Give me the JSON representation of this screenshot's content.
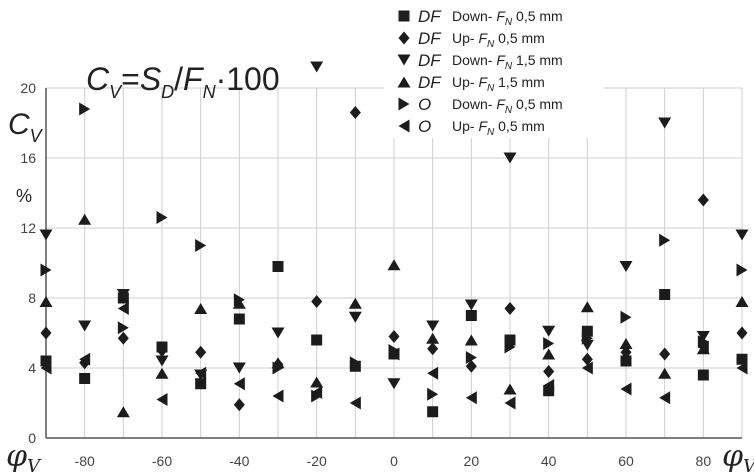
{
  "chart_data": {
    "type": "scatter",
    "formula": "C_V=S_D/F_N·100",
    "ylabel": "C_V",
    "yunit": "%",
    "xlabel": "φ_V",
    "xlim": [
      -90,
      90
    ],
    "ylim": [
      0,
      20
    ],
    "yticks": [
      0,
      4,
      8,
      12,
      16,
      20
    ],
    "xticks": [
      -80,
      -60,
      -40,
      -20,
      0,
      20,
      40,
      60,
      80
    ],
    "grid": true,
    "legend_position": "top-right",
    "series": [
      {
        "name": "DF Down- F_N 0,5 mm",
        "marker": "square",
        "x": [
          -90,
          -80,
          -70,
          -60,
          -50,
          -40,
          -30,
          -20,
          -10,
          0,
          10,
          20,
          30,
          40,
          50,
          60,
          70,
          80,
          90
        ],
        "y": [
          4.4,
          3.4,
          8.0,
          5.2,
          3.1,
          6.8,
          9.8,
          5.6,
          4.1,
          4.8,
          1.5,
          7.0,
          5.6,
          2.7,
          6.1,
          4.4,
          8.2,
          3.6,
          4.5
        ]
      },
      {
        "name": "DF Up- F_N 0,5 mm",
        "marker": "diamond",
        "x": [
          -90,
          -80,
          -70,
          -60,
          -50,
          -40,
          -30,
          -20,
          -10,
          0,
          10,
          20,
          30,
          40,
          50,
          60,
          70,
          80,
          90
        ],
        "y": [
          6.0,
          4.3,
          5.7,
          5.0,
          4.9,
          1.9,
          4.2,
          7.8,
          18.6,
          5.8,
          5.1,
          4.1,
          7.4,
          3.8,
          4.5,
          4.9,
          4.8,
          13.6,
          6.0
        ]
      },
      {
        "name": "DF Down- F_N 1,5 mm",
        "marker": "triangle-down",
        "x": [
          -90,
          -80,
          -70,
          -60,
          -50,
          -40,
          -30,
          -20,
          -10,
          0,
          10,
          20,
          30,
          40,
          50,
          60,
          70,
          80,
          90
        ],
        "y": [
          11.6,
          6.4,
          8.2,
          4.4,
          3.6,
          4.0,
          6.0,
          21.2,
          6.9,
          3.1,
          6.4,
          7.6,
          16.0,
          6.1,
          5.3,
          9.8,
          18.0,
          5.8,
          11.6
        ]
      },
      {
        "name": "DF Up- F_N 1,5 mm",
        "marker": "triangle-up",
        "x": [
          -90,
          -80,
          -70,
          -60,
          -50,
          -40,
          -30,
          -20,
          -10,
          0,
          10,
          20,
          30,
          40,
          50,
          60,
          70,
          80,
          90
        ],
        "y": [
          7.8,
          12.5,
          1.5,
          3.7,
          7.4,
          7.7,
          4.3,
          3.2,
          7.7,
          9.9,
          5.7,
          5.6,
          2.8,
          4.8,
          7.5,
          5.4,
          3.7,
          5.1,
          7.8
        ]
      },
      {
        "name": "O Down- F_N 0,5 mm",
        "marker": "triangle-right",
        "x": [
          -90,
          -80,
          -70,
          -60,
          -50,
          -40,
          -30,
          -20,
          -10,
          0,
          10,
          20,
          30,
          40,
          50,
          60,
          70,
          80,
          90
        ],
        "y": [
          9.6,
          18.8,
          6.3,
          12.6,
          11.0,
          7.9,
          4.0,
          2.4,
          4.3,
          5.0,
          2.5,
          4.6,
          5.2,
          5.4,
          5.7,
          6.9,
          11.3,
          5.5,
          9.6
        ]
      },
      {
        "name": "O Up- F_N 0,5 mm",
        "marker": "triangle-left",
        "x": [
          -90,
          -80,
          -70,
          -60,
          -50,
          -40,
          -30,
          -20,
          -10,
          0,
          10,
          20,
          30,
          40,
          50,
          60,
          70,
          80,
          90
        ],
        "y": [
          4.0,
          4.5,
          7.4,
          2.2,
          3.7,
          3.1,
          2.4,
          2.6,
          2.0,
          4.8,
          3.7,
          2.3,
          2.0,
          3.0,
          4.0,
          2.8,
          2.3,
          5.2,
          4.0
        ]
      }
    ]
  },
  "legend": {
    "items": [
      {
        "tag": "DF",
        "label": "Down- F_N 0,5 mm"
      },
      {
        "tag": "DF",
        "label": "Up- F_N 0,5 mm"
      },
      {
        "tag": "DF",
        "label": "Down- F_N 1,5 mm"
      },
      {
        "tag": "DF",
        "label": "Up- F_N 1,5 mm"
      },
      {
        "tag": "O",
        "label": "Down- F_N 0,5 mm"
      },
      {
        "tag": "O",
        "label": "Up- F_N 0,5 mm"
      }
    ]
  },
  "colors": {
    "marker": "#1c1c1c",
    "grid": "#cfcfcf",
    "axis": "#555555"
  }
}
